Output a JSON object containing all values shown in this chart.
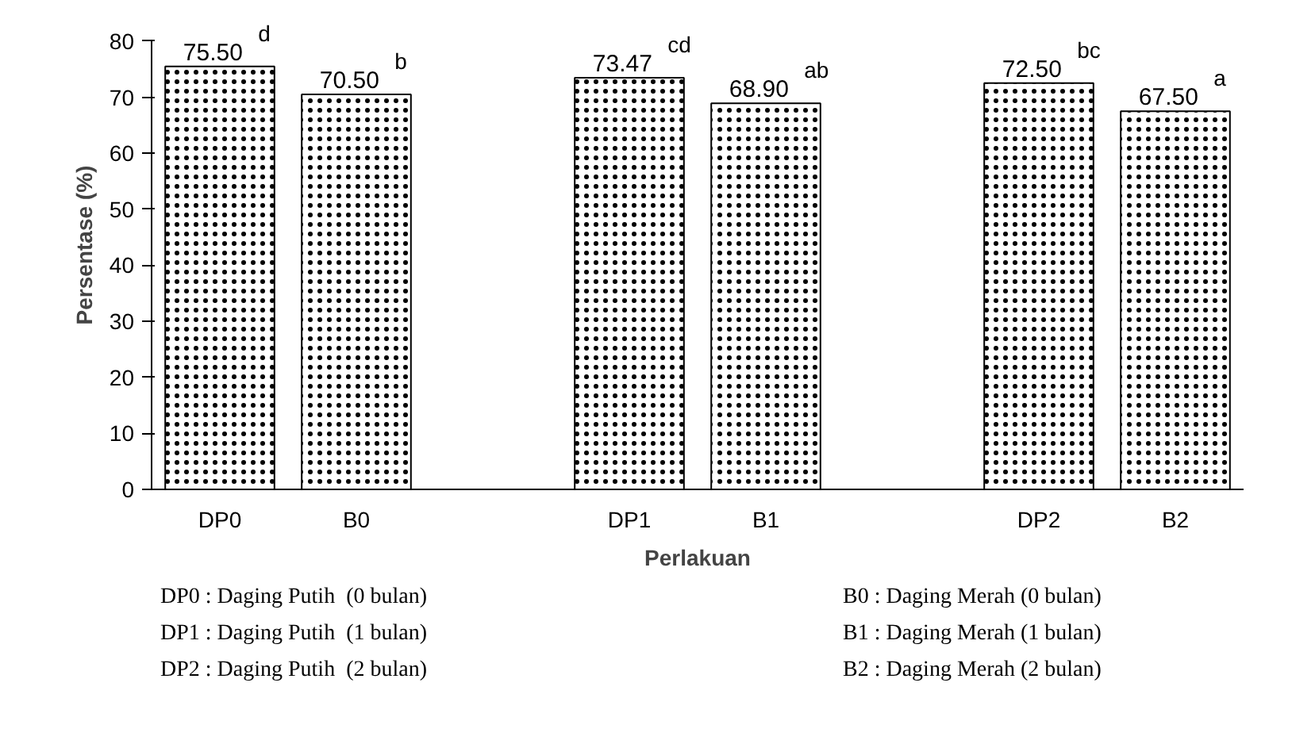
{
  "chart_data": {
    "type": "bar",
    "xlabel": "Perlakuan",
    "ylabel": "Persentase (%)",
    "categories": [
      "DP0",
      "B0",
      null,
      "DP1",
      "B1",
      null,
      "DP2",
      "B2"
    ],
    "values": [
      75.5,
      70.5,
      null,
      73.47,
      68.9,
      null,
      72.5,
      67.5
    ],
    "value_labels": [
      "75.50",
      "70.50",
      null,
      "73.47",
      "68.90",
      null,
      "72.50",
      "67.50"
    ],
    "color": "#ffffff",
    "ylim": [
      0,
      80
    ],
    "yticks": [
      0,
      10,
      20,
      30,
      40,
      50,
      60,
      70,
      80
    ],
    "grid": false,
    "annotations": [
      {
        "text": "d",
        "x": "DP0",
        "y": 75.5
      },
      {
        "text": "b",
        "x": "B0",
        "y": 70.5
      },
      {
        "text": "cd",
        "x": "DP1",
        "y": 73.47
      },
      {
        "text": "ab",
        "x": "B1",
        "y": 68.9
      },
      {
        "text": "bc",
        "x": "DP2",
        "y": 72.5
      },
      {
        "text": "a",
        "x": "B2",
        "y": 67.5
      },
      "DP0 : Daging Putih  (0 bulan)",
      "B0 : Daging Merah (0 bulan)",
      "DP1 : Daging Putih  (1 bulan)",
      "B1 : Daging Merah (1 bulan)",
      "DP2 : Daging Putih  (2 bulan)",
      "B2 : Daging Merah (2 bulan)"
    ]
  }
}
